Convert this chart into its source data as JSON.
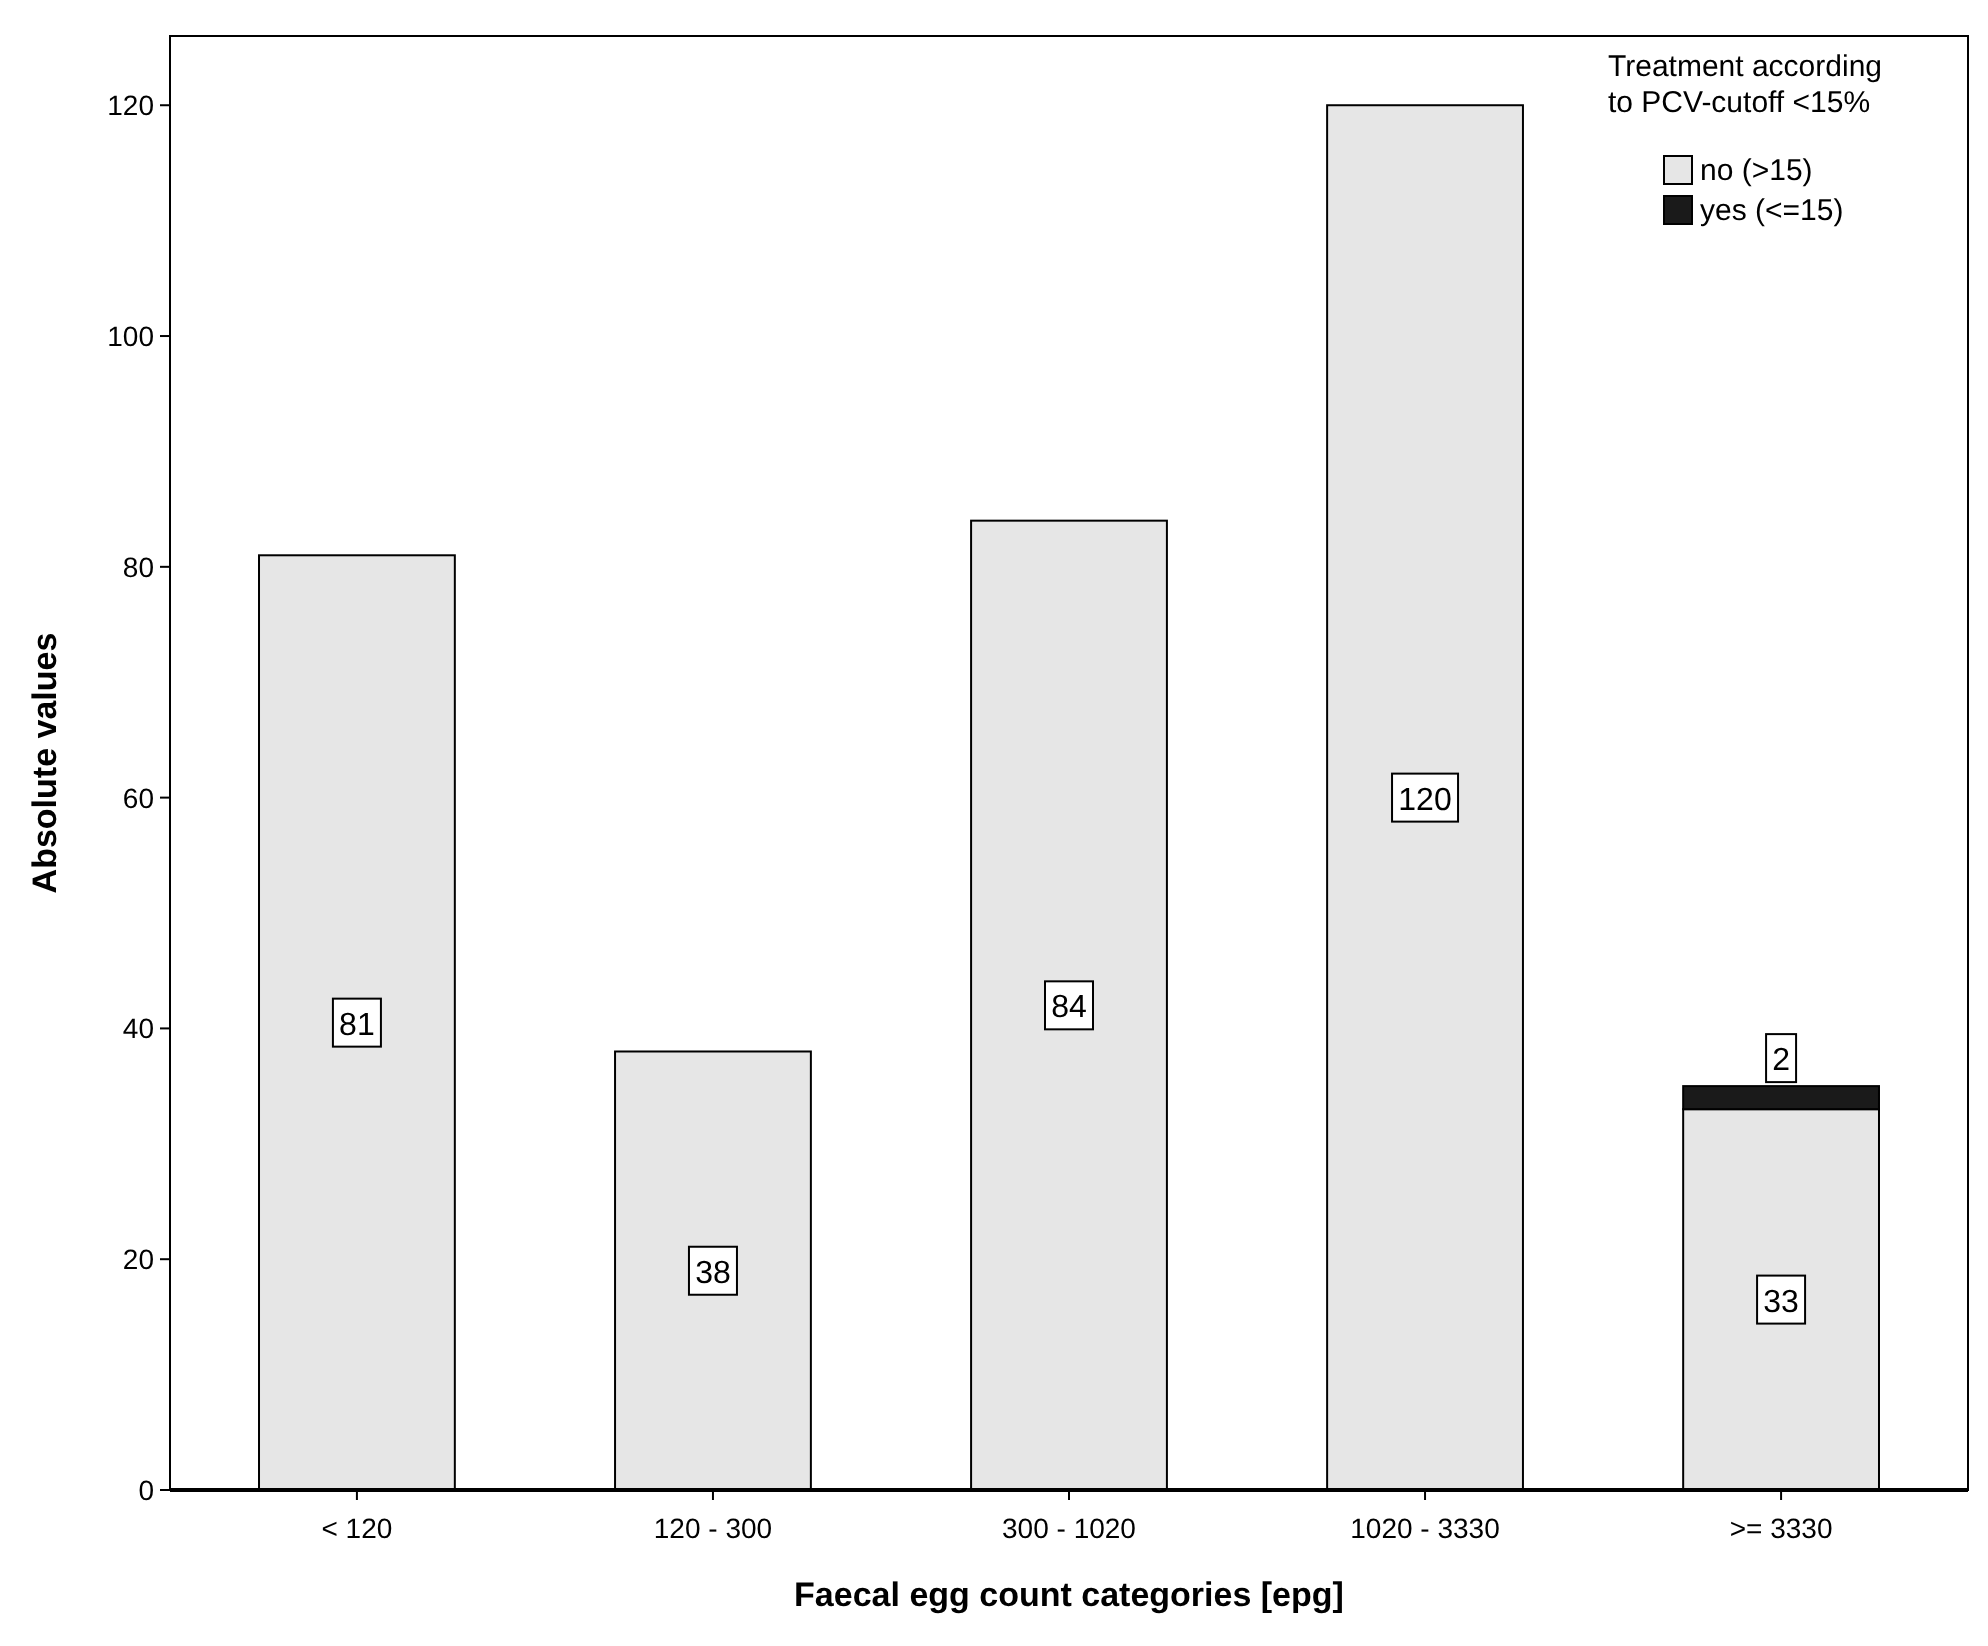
{
  "chart_data": {
    "type": "bar",
    "stacked": true,
    "xlabel": "Faecal egg count categories [epg]",
    "ylabel": "Absolute values",
    "legend_title": "Treatment according to PCV-cutoff <15%",
    "legend": "top right",
    "grid": false,
    "categories": [
      "< 120",
      "120 - 300",
      "300 - 1020",
      "1020 - 3330",
      ">= 3330"
    ],
    "ylim": [
      0,
      126
    ],
    "yticks": [
      0,
      20,
      40,
      60,
      80,
      100,
      120
    ],
    "series": [
      {
        "name": "no (>15)",
        "color": "#e6e6e6",
        "values": [
          81,
          38,
          84,
          120,
          33
        ],
        "value_labels": [
          "81",
          "38",
          "84",
          "120",
          "33"
        ]
      },
      {
        "name": "yes (<=15)",
        "color": "#1a1a1a",
        "values": [
          null,
          null,
          null,
          null,
          2
        ],
        "value_labels": [
          null,
          null,
          null,
          null,
          "2"
        ]
      }
    ]
  }
}
